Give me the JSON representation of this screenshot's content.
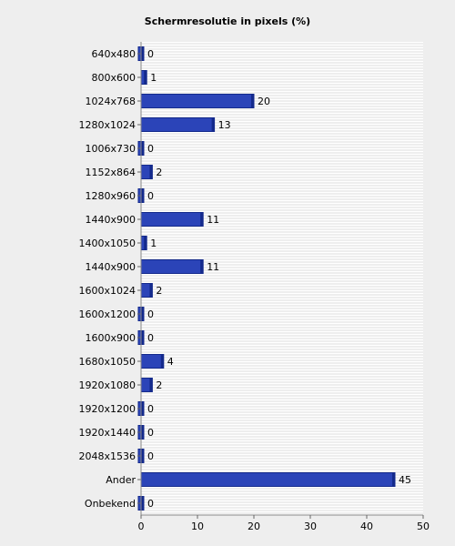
{
  "chart_data": {
    "type": "bar",
    "orientation": "horizontal",
    "title": "Schermresolutie in pixels (%)",
    "xlabel": "",
    "ylabel": "",
    "categories": [
      "640x480",
      "800x600",
      "1024x768",
      "1280x1024",
      "1006x730",
      "1152x864",
      "1280x960",
      "1440x900",
      "1400x1050",
      "1440x900",
      "1600x1024",
      "1600x1200",
      "1600x900",
      "1680x1050",
      "1920x1080",
      "1920x1200",
      "1920x1440",
      "2048x1536",
      "Ander",
      "Onbekend"
    ],
    "values": [
      0,
      1,
      20,
      13,
      0,
      2,
      0,
      11,
      1,
      11,
      2,
      0,
      0,
      4,
      2,
      0,
      0,
      0,
      45,
      0
    ],
    "xlim": [
      0,
      50
    ],
    "xticks": [
      0,
      10,
      20,
      30,
      40,
      50
    ],
    "grid": true,
    "legend": "none",
    "bar_color": "#2b44b8",
    "bar_edge_color": "#142a8c",
    "background_color": "#eeeeee",
    "plot_background_color": "#ffffff"
  }
}
